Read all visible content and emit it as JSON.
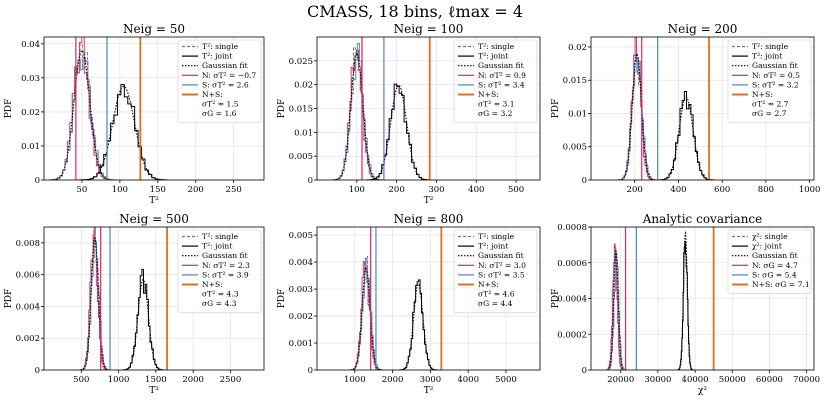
{
  "suptitle": "CMASS, 18 bins, ℓmax = 4",
  "colors": {
    "N": "#e0245e",
    "S": "#4c86c0",
    "NS": "#e07020",
    "joint": "#000000",
    "single": "#777777",
    "grid": "#dddddd"
  },
  "chart_data": [
    {
      "type": "histogram",
      "title": "Neig = 50",
      "xlabel": "T²",
      "ylabel": "PDF",
      "xlim": [
        0,
        290
      ],
      "ylim": [
        0,
        0.042
      ],
      "xticks": [
        50,
        100,
        150,
        200,
        250
      ],
      "yticks": [
        0,
        0.01,
        0.02,
        0.03,
        0.04
      ],
      "single": {
        "mean": 50,
        "sd": 10.5
      },
      "joint": {
        "mean": 105,
        "sd": 14.5
      },
      "lines": {
        "N": 42,
        "S": 83,
        "NS": 127
      },
      "legend": [
        "T²: single",
        "T²: joint",
        "Gaussian fit",
        "N: σT² = −0.7",
        "S: σT² = 2.6",
        "N+S:",
        "σT² = 1.5",
        "σG = 1.6"
      ]
    },
    {
      "type": "histogram",
      "title": "Neig = 100",
      "xlabel": "T²",
      "ylabel": "PDF",
      "xlim": [
        0,
        560
      ],
      "ylim": [
        0,
        0.03
      ],
      "xticks": [
        100,
        200,
        300,
        400,
        500
      ],
      "yticks": [
        0,
        0.005,
        0.01,
        0.015,
        0.02,
        0.025
      ],
      "single": {
        "mean": 100,
        "sd": 15
      },
      "joint": {
        "mean": 205,
        "sd": 20
      },
      "lines": {
        "N": 113,
        "S": 168,
        "NS": 283
      },
      "legend": [
        "T²: single",
        "T²: joint",
        "Gaussian fit",
        "N: σT² = 0.9",
        "S: σT² = 3.4",
        "N+S:",
        "σT² = 3.1",
        "σG = 3.2"
      ]
    },
    {
      "type": "histogram",
      "title": "Neig = 200",
      "xlabel": "",
      "ylabel": "PDF",
      "xlim": [
        0,
        1020
      ],
      "ylim": [
        0,
        0.0215
      ],
      "xticks": [
        200,
        400,
        600,
        800,
        1000
      ],
      "yticks": [
        0,
        0.005,
        0.01,
        0.015,
        0.02
      ],
      "single": {
        "mean": 210,
        "sd": 21
      },
      "joint": {
        "mean": 435,
        "sd": 32
      },
      "lines": {
        "N": 232,
        "S": 305,
        "NS": 540
      },
      "legend": [
        "T²: single",
        "T²: joint",
        "Gaussian fit",
        "N: σT² = 0.5",
        "S: σT² = 3.2",
        "N+S:",
        "σT² = 2.7",
        "σG = 2.7"
      ]
    },
    {
      "type": "histogram",
      "title": "Neig = 500",
      "xlabel": "T²",
      "ylabel": "PDF",
      "xlim": [
        0,
        2950
      ],
      "ylim": [
        0,
        0.009
      ],
      "xticks": [
        500,
        1000,
        1500,
        2000,
        2500
      ],
      "yticks": [
        0,
        0.002,
        0.004,
        0.006,
        0.008
      ],
      "single": {
        "mean": 680,
        "sd": 48
      },
      "joint": {
        "mean": 1330,
        "sd": 70
      },
      "lines": {
        "N": 760,
        "S": 885,
        "NS": 1650
      },
      "legend": [
        "T²: single",
        "T²: joint",
        "Gaussian fit",
        "N: σT² = 2.3",
        "S: σT² = 3.9",
        "N+S:",
        "σT² = 4.3",
        "σG = 4.3"
      ]
    },
    {
      "type": "histogram",
      "title": "Neig = 800",
      "xlabel": "T²",
      "ylabel": "PDF",
      "xlim": [
        0,
        5900
      ],
      "ylim": [
        0,
        0.0053
      ],
      "xticks": [
        1000,
        2000,
        3000,
        4000,
        5000
      ],
      "yticks": [
        0,
        0.001,
        0.002,
        0.003,
        0.004,
        0.005
      ],
      "single": {
        "mean": 1300,
        "sd": 105
      },
      "joint": {
        "mean": 2680,
        "sd": 125
      },
      "lines": {
        "N": 1420,
        "S": 1560,
        "NS": 3290
      },
      "legend": [
        "T²: single",
        "T²: joint",
        "Gaussian fit",
        "N: σT² = 3.0",
        "S: σT² = 3.5",
        "N+S:",
        "σT² = 4.6",
        "σG = 4.4"
      ]
    },
    {
      "type": "histogram",
      "title": "Analytic covariance",
      "xlabel": "χ²",
      "ylabel": "PDF",
      "xlim": [
        12000,
        72000
      ],
      "ylim": [
        0,
        0.0008
      ],
      "xticks": [
        20000,
        30000,
        40000,
        50000,
        60000,
        70000
      ],
      "yticks": [
        0,
        0.0002,
        0.0004,
        0.0006,
        0.0008
      ],
      "single": {
        "mean": 18700,
        "sd": 600
      },
      "joint": {
        "mean": 37400,
        "sd": 520
      },
      "lines": {
        "N": 21300,
        "S": 24200,
        "NS": 45000
      },
      "legend": [
        "χ²: single",
        "χ²: joint",
        "Gaussian fit",
        "N: σG = 4.7",
        "S: σG = 5.4",
        "N+S: σG = 7.1"
      ]
    }
  ]
}
